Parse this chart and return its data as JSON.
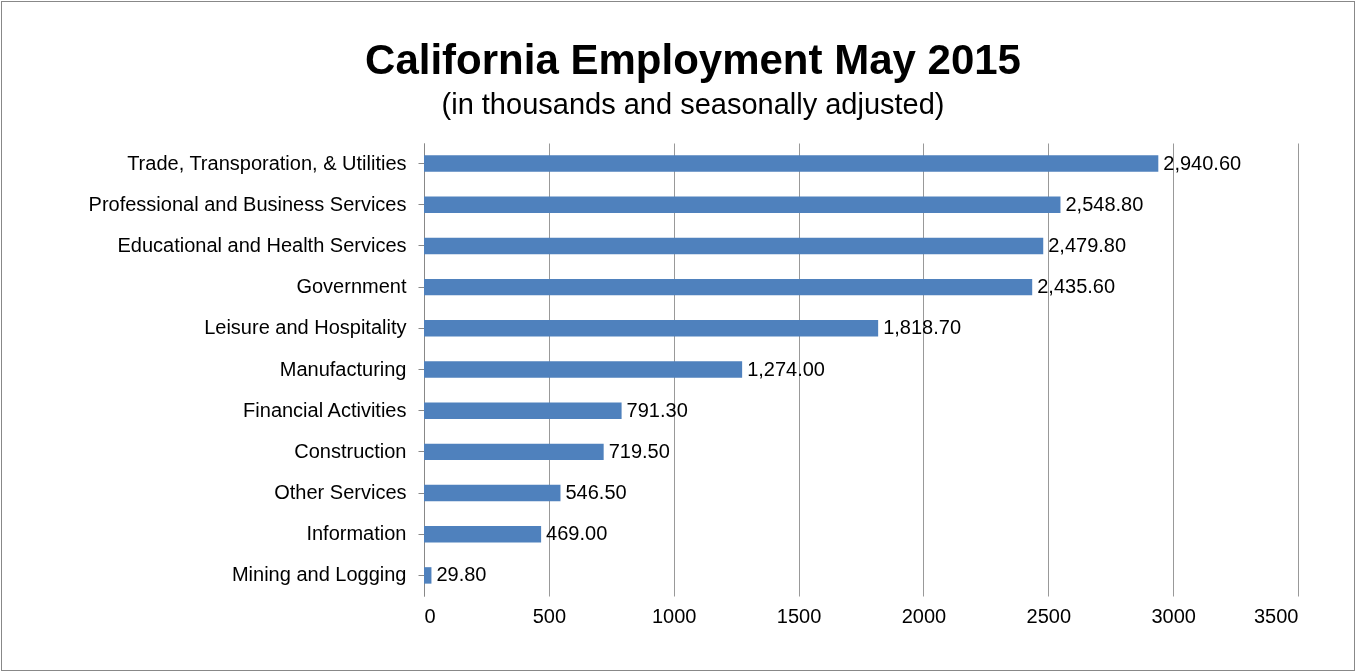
{
  "chart_data": {
    "type": "bar",
    "orientation": "horizontal",
    "title": "California Employment May 2015",
    "subtitle": "(in thousands and seasonally adjusted)",
    "categories": [
      "Trade, Transporation, & Utilities",
      "Professional and Business Services",
      "Educational and Health Services",
      "Government",
      "Leisure and Hospitality",
      "Manufacturing",
      "Financial Activities",
      "Construction",
      "Other Services",
      "Information",
      "Mining and Logging"
    ],
    "values": [
      2940.6,
      2548.8,
      2479.8,
      2435.6,
      1818.7,
      1274.0,
      791.3,
      719.5,
      546.5,
      469.0,
      29.8
    ],
    "value_labels": [
      "2,940.60",
      "2,548.80",
      "2,479.80",
      "2,435.60",
      "1,818.70",
      "1,274.00",
      "791.30",
      "719.50",
      "546.50",
      "469.00",
      "29.80"
    ],
    "color": "#4f81bd",
    "xlim": [
      0,
      3500
    ],
    "xticks": [
      0,
      500,
      1000,
      1500,
      2000,
      2500,
      3000,
      3500
    ],
    "grid": "x"
  }
}
